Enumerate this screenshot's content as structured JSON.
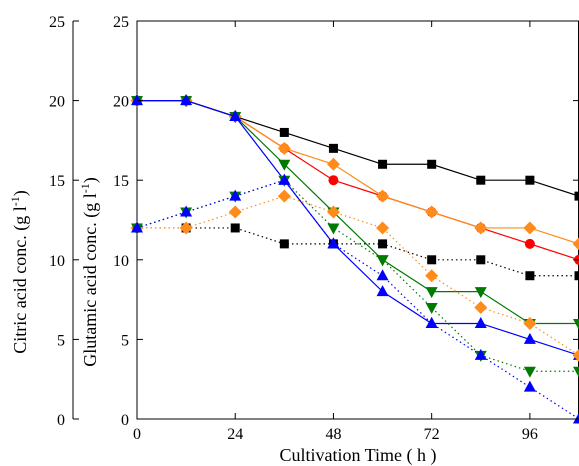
{
  "chart_data": {
    "type": "line",
    "xlabel": "Cultivation Time ( h )",
    "ylabel_outer": "Citric acid conc.  (g l",
    "ylabel_outer_sup": "-1",
    "ylabel_outer_end": ")",
    "ylabel_inner": "Glutamic acid conc.  (g l",
    "ylabel_inner_sup": "-1",
    "ylabel_inner_end": ")",
    "xlim": [
      0,
      108
    ],
    "ylim": [
      0,
      25
    ],
    "xticks": [
      0,
      24,
      48,
      72,
      96
    ],
    "yticks": [
      0,
      5,
      10,
      15,
      20,
      25
    ],
    "x": [
      0,
      12,
      24,
      36,
      48,
      60,
      72,
      84,
      96,
      108
    ],
    "series": [
      {
        "marker": "square",
        "color": "#000000",
        "dash": "solid",
        "values": [
          20,
          20,
          19,
          18,
          17,
          16,
          16,
          15,
          15,
          14
        ]
      },
      {
        "marker": "circle",
        "color": "#ff0000",
        "dash": "solid",
        "values": [
          20,
          20,
          19,
          17,
          15,
          14,
          13,
          12,
          11,
          10
        ]
      },
      {
        "marker": "diamond",
        "color": "#ff8c1a",
        "dash": "solid",
        "values": [
          20,
          20,
          19,
          17,
          16,
          14,
          13,
          12,
          12,
          11
        ]
      },
      {
        "marker": "triangle-down",
        "color": "#007a00",
        "dash": "solid",
        "values": [
          20,
          20,
          19,
          16,
          13,
          10,
          8,
          8,
          6,
          6
        ]
      },
      {
        "marker": "triangle-up",
        "color": "#0000ff",
        "dash": "solid",
        "values": [
          20,
          20,
          19,
          15,
          11,
          8,
          6,
          6,
          5,
          4
        ]
      },
      {
        "marker": "square",
        "color": "#000000",
        "dash": "dotted",
        "values": [
          12,
          12,
          12,
          11,
          11,
          11,
          10,
          10,
          9,
          9
        ]
      },
      {
        "marker": "diamond",
        "color": "#ff8c1a",
        "dash": "dotted",
        "values": [
          12,
          12,
          13,
          14,
          13,
          12,
          9,
          7,
          6,
          4
        ]
      },
      {
        "marker": "triangle-down",
        "color": "#007a00",
        "dash": "dotted",
        "values": [
          12,
          13,
          14,
          15,
          12,
          10,
          7,
          4,
          3,
          3
        ]
      },
      {
        "marker": "triangle-up",
        "color": "#0000ff",
        "dash": "dotted",
        "values": [
          12,
          13,
          14,
          15,
          11,
          9,
          6,
          4,
          2,
          0
        ]
      }
    ]
  }
}
